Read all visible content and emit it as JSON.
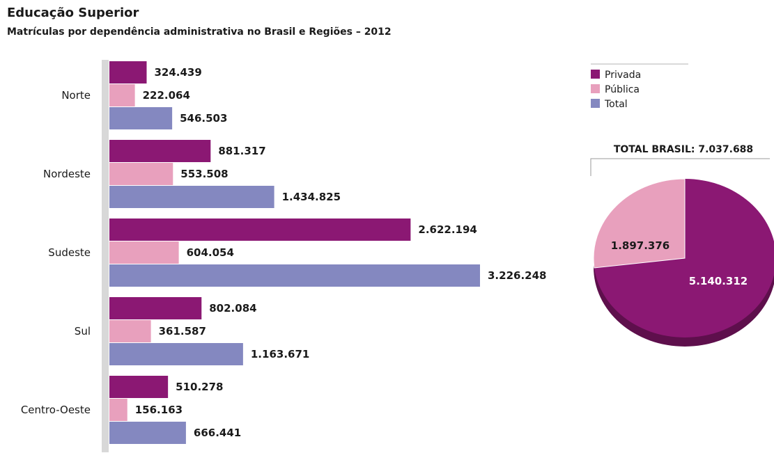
{
  "title": "Educação Superior",
  "subtitle": "Matrículas por dependência administrativa no Brasil e Regiões – 2012",
  "colors": {
    "privada": "#8b1873",
    "publica": "#e8a0bd",
    "total": "#8488c0",
    "axis": "#d8d8d8"
  },
  "chart_data": [
    {
      "type": "bar",
      "orientation": "horizontal",
      "categories": [
        "Norte",
        "Nordeste",
        "Sudeste",
        "Sul",
        "Centro-Oeste"
      ],
      "series": [
        {
          "name": "Privada",
          "values": [
            324439,
            881317,
            2622194,
            802084,
            510278
          ],
          "labels": [
            "324.439",
            "881.317",
            "2.622.194",
            "802.084",
            "510.278"
          ]
        },
        {
          "name": "Pública",
          "values": [
            222064,
            553508,
            604054,
            361587,
            156163
          ],
          "labels": [
            "222.064",
            "553.508",
            "604.054",
            "361.587",
            "156.163"
          ]
        },
        {
          "name": "Total",
          "values": [
            546503,
            1434825,
            3226248,
            1163671,
            666441
          ],
          "labels": [
            "546.503",
            "1.434.825",
            "3.226.248",
            "1.163.671",
            "666.441"
          ]
        }
      ],
      "legend": "top-right",
      "grid": false
    },
    {
      "type": "pie",
      "title": "TOTAL BRASIL: 7.037.688",
      "slices": [
        {
          "name": "Privada",
          "value": 5140312,
          "label": "5.140.312"
        },
        {
          "name": "Pública",
          "value": 1897376,
          "label": "1.897.376"
        }
      ]
    }
  ]
}
